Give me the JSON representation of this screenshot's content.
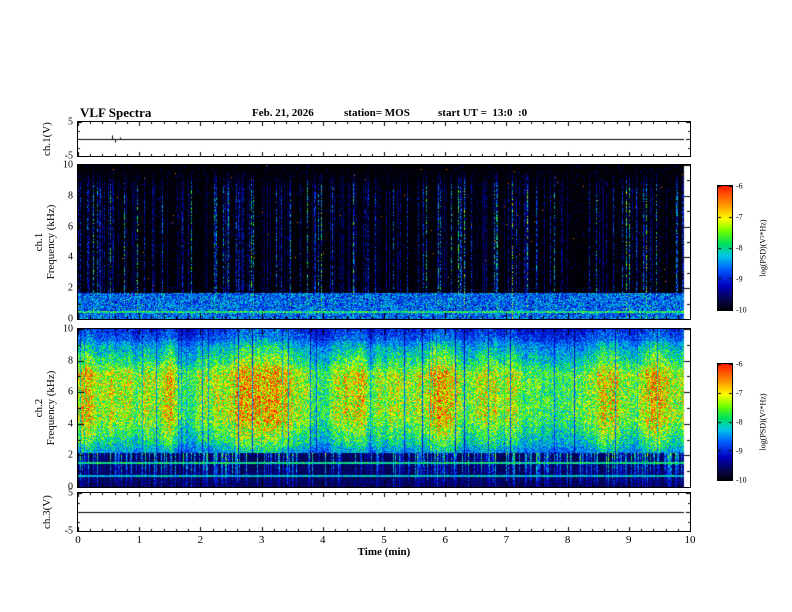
{
  "header": {
    "title": "VLF Spectra",
    "date": "Feb. 21, 2026",
    "station": "station= MOS",
    "start_ut": "start UT =  13:0  :0"
  },
  "xaxis": {
    "label": "Time (min)",
    "range_min": [
      0,
      10
    ],
    "major_ticks": [
      0,
      1,
      2,
      3,
      4,
      5,
      6,
      7,
      8,
      9,
      10
    ],
    "minor_step_min": 0.2
  },
  "colorbar": {
    "label": "log(PSD)(V²*Hz)",
    "ticks": [
      -6,
      -7,
      -8,
      -9,
      -10
    ],
    "top_value": -6,
    "bottom_value": -10
  },
  "chart_data": [
    {
      "id": "ch1_voltage",
      "type": "line",
      "ylabel": "ch.1(V)",
      "ylim": [
        -5,
        5
      ],
      "yticks": [
        5,
        -5
      ],
      "time_extent_min": [
        0,
        9.9
      ],
      "value_volts": 0,
      "spikes": [
        {
          "t": 0.55,
          "amp": 1.3
        },
        {
          "t": 0.6,
          "amp": -0.9
        },
        {
          "t": 0.68,
          "amp": 0.6
        }
      ],
      "description": "ch.1 waveform, essentially flat at 0 V with a few tiny impulses near t=0.6 min"
    },
    {
      "id": "ch1_spectrogram",
      "type": "heatmap",
      "ylabel_line1": "ch.1",
      "ylabel_line2": "Frequency (kHz)",
      "ylim": [
        0,
        10
      ],
      "yticks": [
        0,
        2,
        4,
        6,
        8,
        10
      ],
      "time_extent_min": [
        0,
        9.9
      ],
      "psd_log_range": [
        -10,
        -6
      ],
      "description": "mostly at noise floor (-10, black) with dense vertical broadband sferic streaks (blue/cyan, some green) reaching up to ~9 kHz, a continuous noise band below ~1.7 kHz and a narrow line near 0.5 kHz",
      "texture": {
        "seed": 20260221,
        "fill_fraction": 0.991,
        "streak_probability": 0.3,
        "amp_min": 0.15,
        "amp_max": 0.72,
        "bright_prob": 0.08,
        "speckle": 0.035,
        "bottom_band_khz": 1.7,
        "line_khz": 0.5,
        "red_dot_prob": 0.0007,
        "falloff_start_khz": 8.3,
        "falloff_end_khz": 9.7
      }
    },
    {
      "id": "ch2_spectrogram",
      "type": "heatmap",
      "ylabel_line1": "ch.2",
      "ylabel_line2": "Frequency (kHz)",
      "ylim": [
        0,
        10
      ],
      "yticks": [
        0,
        2,
        4,
        6,
        8,
        10
      ],
      "time_extent_min": [
        0,
        9.9
      ],
      "psd_log_range": [
        -10,
        -6
      ],
      "description": "strong continuous emission band ~2.5-9 kHz (green/yellow with red cores near 4.5-7.5 kHz), vertical streaks extending to 0 kHz, dark low band below ~2.2 kHz with narrow lines near 1.55 and 0.75 kHz, cyan/blue edge above ~9.3 kHz",
      "texture": {
        "seed": 4108,
        "fill_fraction": 0.991,
        "low_band_khz": 2.2,
        "top_edge_khz": 9.3,
        "gap_prob": 0.05,
        "streak_prob": 0.5,
        "lines_khz": [
          1.55,
          0.75
        ],
        "envelope": [
          [
            0,
            0.4
          ],
          [
            2.2,
            0.45
          ],
          [
            2.8,
            0.58
          ],
          [
            3.6,
            0.68
          ],
          [
            4.4,
            0.78
          ],
          [
            7.2,
            0.8
          ],
          [
            7.9,
            0.64
          ],
          [
            8.8,
            0.52
          ],
          [
            9.3,
            0.42
          ],
          [
            10,
            0.34
          ]
        ]
      }
    },
    {
      "id": "ch3_voltage",
      "type": "line",
      "ylabel": "ch.3(V)",
      "ylim": [
        -5,
        5
      ],
      "yticks": [
        5,
        -5
      ],
      "time_extent_min": [
        0,
        9.9
      ],
      "value_volts": 0,
      "spikes": [],
      "description": "ch.3 waveform, flat line at 0 V"
    }
  ]
}
